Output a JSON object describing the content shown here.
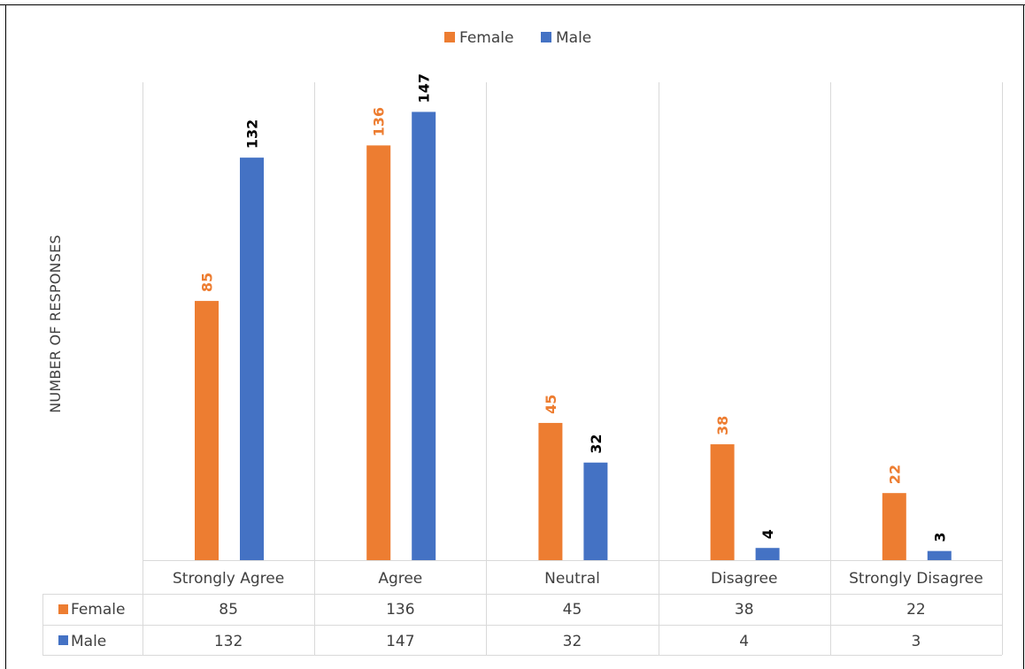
{
  "chart_data": {
    "type": "bar",
    "categories": [
      "Strongly Agree",
      "Agree",
      "Neutral",
      "Disagree",
      "Strongly Disagree"
    ],
    "series": [
      {
        "name": "Female",
        "color": "#ED7D31",
        "label_color": "#ED7D31",
        "values": [
          85,
          136,
          45,
          38,
          22
        ]
      },
      {
        "name": "Male",
        "color": "#4472C4",
        "label_color": "#000000",
        "values": [
          132,
          147,
          32,
          4,
          3
        ]
      }
    ],
    "title": "",
    "xlabel": "",
    "ylabel": "NUMBER OF RESPONSES",
    "ylim": [
      0,
      160
    ],
    "legend": "top",
    "grid": "vertical category separators",
    "data_table": true
  }
}
